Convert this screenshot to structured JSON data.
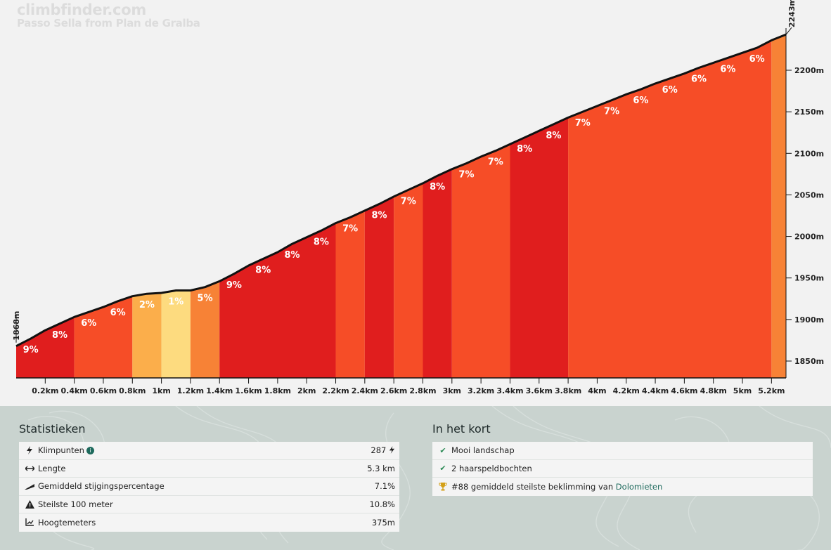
{
  "chart_data": {
    "type": "area",
    "watermark_title": "climbfinder.com",
    "subtitle": "Passo Sella from Plan de Gralba",
    "start_elevation_label": "1868m",
    "end_elevation_label": "2243m",
    "start_elevation": 1868,
    "end_elevation": 2243,
    "x_range_km": [
      0,
      5.3
    ],
    "ylim": [
      1825,
      2260
    ],
    "y_ticks": [
      1850,
      1900,
      1950,
      2000,
      2050,
      2100,
      2150,
      2200
    ],
    "y_tick_labels": [
      "1850m",
      "1900m",
      "1950m",
      "2000m",
      "2050m",
      "2100m",
      "2150m",
      "2200m"
    ],
    "x_ticks": [
      0.2,
      0.4,
      0.6,
      0.8,
      1.0,
      1.2,
      1.4,
      1.6,
      1.8,
      2.0,
      2.2,
      2.4,
      2.6,
      2.8,
      3.0,
      3.2,
      3.4,
      3.6,
      3.8,
      4.0,
      4.2,
      4.4,
      4.6,
      4.8,
      5.0,
      5.2
    ],
    "x_tick_labels": [
      "0.2km",
      "0.4km",
      "0.6km",
      "0.8km",
      "1km",
      "1.2km",
      "1.4km",
      "1.6km",
      "1.8km",
      "2km",
      "2.2km",
      "2.4km",
      "2.6km",
      "2.8km",
      "3km",
      "3.2km",
      "3.4km",
      "3.6km",
      "3.8km",
      "4km",
      "4.2km",
      "4.4km",
      "4.6km",
      "4.8km",
      "5km",
      "5.2km"
    ],
    "segments": [
      {
        "start_km": 0.0,
        "end_km": 0.4,
        "grade": 9,
        "color": "#e01e1e"
      },
      {
        "start_km": 0.4,
        "end_km": 0.8,
        "grade": 6,
        "color": "#f64d27"
      },
      {
        "start_km": 0.8,
        "end_km": 1.0,
        "grade": 2,
        "color": "#fbae4b"
      },
      {
        "start_km": 1.0,
        "end_km": 1.2,
        "grade": 1,
        "color": "#fddb7f"
      },
      {
        "start_km": 1.2,
        "end_km": 1.4,
        "grade": 5,
        "color": "#f78236"
      },
      {
        "start_km": 1.4,
        "end_km": 2.2,
        "grade": 8,
        "color": "#e01e1e"
      },
      {
        "start_km": 2.2,
        "end_km": 2.4,
        "grade": 7,
        "color": "#f64d27"
      },
      {
        "start_km": 2.4,
        "end_km": 2.6,
        "grade": 8,
        "color": "#e01e1e"
      },
      {
        "start_km": 2.6,
        "end_km": 2.8,
        "grade": 7,
        "color": "#f64d27"
      },
      {
        "start_km": 2.8,
        "end_km": 3.0,
        "grade": 8,
        "color": "#e01e1e"
      },
      {
        "start_km": 3.0,
        "end_km": 3.4,
        "grade": 7,
        "color": "#f64d27"
      },
      {
        "start_km": 3.4,
        "end_km": 3.8,
        "grade": 8,
        "color": "#e01e1e"
      },
      {
        "start_km": 3.8,
        "end_km": 5.2,
        "grade": 7,
        "color": "#f64d27"
      },
      {
        "start_km": 5.2,
        "end_km": 5.3,
        "grade": 5,
        "color": "#f78236"
      }
    ],
    "grade_labels": [
      {
        "km": 0.1,
        "text": "9%"
      },
      {
        "km": 0.3,
        "text": "8%"
      },
      {
        "km": 0.5,
        "text": "6%"
      },
      {
        "km": 0.7,
        "text": "6%"
      },
      {
        "km": 0.9,
        "text": "2%"
      },
      {
        "km": 1.1,
        "text": "1%"
      },
      {
        "km": 1.3,
        "text": "5%"
      },
      {
        "km": 1.5,
        "text": "9%"
      },
      {
        "km": 1.7,
        "text": "8%"
      },
      {
        "km": 1.9,
        "text": "8%"
      },
      {
        "km": 2.1,
        "text": "8%"
      },
      {
        "km": 2.3,
        "text": "7%"
      },
      {
        "km": 2.5,
        "text": "8%"
      },
      {
        "km": 2.7,
        "text": "7%"
      },
      {
        "km": 2.9,
        "text": "8%"
      },
      {
        "km": 3.1,
        "text": "7%"
      },
      {
        "km": 3.3,
        "text": "7%"
      },
      {
        "km": 3.5,
        "text": "8%"
      },
      {
        "km": 3.7,
        "text": "8%"
      },
      {
        "km": 3.9,
        "text": "7%"
      },
      {
        "km": 4.1,
        "text": "7%"
      },
      {
        "km": 4.3,
        "text": "6%"
      },
      {
        "km": 4.5,
        "text": "6%"
      },
      {
        "km": 4.7,
        "text": "6%"
      },
      {
        "km": 4.9,
        "text": "6%"
      },
      {
        "km": 5.1,
        "text": "6%"
      }
    ],
    "profile": [
      [
        0.0,
        1868
      ],
      [
        0.1,
        1877
      ],
      [
        0.2,
        1887
      ],
      [
        0.3,
        1895
      ],
      [
        0.4,
        1903
      ],
      [
        0.5,
        1909
      ],
      [
        0.6,
        1915
      ],
      [
        0.7,
        1922
      ],
      [
        0.8,
        1928
      ],
      [
        0.9,
        1931
      ],
      [
        1.0,
        1932
      ],
      [
        1.1,
        1935
      ],
      [
        1.2,
        1935
      ],
      [
        1.3,
        1939
      ],
      [
        1.4,
        1946
      ],
      [
        1.5,
        1955
      ],
      [
        1.6,
        1965
      ],
      [
        1.7,
        1973
      ],
      [
        1.8,
        1981
      ],
      [
        1.9,
        1991
      ],
      [
        2.0,
        1999
      ],
      [
        2.1,
        2007
      ],
      [
        2.2,
        2016
      ],
      [
        2.3,
        2023
      ],
      [
        2.4,
        2031
      ],
      [
        2.5,
        2039
      ],
      [
        2.6,
        2048
      ],
      [
        2.7,
        2056
      ],
      [
        2.8,
        2064
      ],
      [
        2.9,
        2073
      ],
      [
        3.0,
        2081
      ],
      [
        3.1,
        2088
      ],
      [
        3.2,
        2096
      ],
      [
        3.3,
        2103
      ],
      [
        3.4,
        2111
      ],
      [
        3.5,
        2119
      ],
      [
        3.6,
        2127
      ],
      [
        3.7,
        2135
      ],
      [
        3.8,
        2143
      ],
      [
        3.9,
        2150
      ],
      [
        4.0,
        2157
      ],
      [
        4.1,
        2164
      ],
      [
        4.2,
        2171
      ],
      [
        4.3,
        2177
      ],
      [
        4.4,
        2184
      ],
      [
        4.5,
        2190
      ],
      [
        4.6,
        2196
      ],
      [
        4.7,
        2203
      ],
      [
        4.8,
        2209
      ],
      [
        4.9,
        2215
      ],
      [
        5.0,
        2221
      ],
      [
        5.1,
        2227
      ],
      [
        5.2,
        2236
      ],
      [
        5.3,
        2243
      ]
    ]
  },
  "stats": {
    "title": "Statistieken",
    "rows": [
      {
        "icon": "bolt-icon",
        "label": "Klimpunten",
        "value": "287"
      },
      {
        "icon": "arrows-horizontal-icon",
        "label": "Lengte",
        "value": "5.3 km"
      },
      {
        "icon": "slope-icon",
        "label": "Gemiddeld stijgingspercentage",
        "value": "7.1%"
      },
      {
        "icon": "warning-icon",
        "label": "Steilste 100 meter",
        "value": "10.8%"
      },
      {
        "icon": "chart-line-icon",
        "label": "Hoogtemeters",
        "value": "375m"
      }
    ]
  },
  "summary": {
    "title": "In het kort",
    "item1": "Mooi landschap",
    "item2": "2 haarspeldbochten",
    "item3_prefix": "#88 gemiddeld steilste beklimming van ",
    "item3_link": "Dolomieten"
  }
}
